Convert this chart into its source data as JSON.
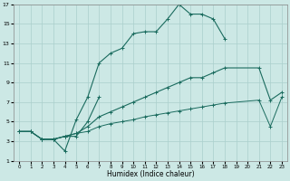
{
  "xlabel": "Humidex (Indice chaleur)",
  "background_color": "#cce8e5",
  "grid_color": "#aacfcc",
  "line_color": "#1a6b5e",
  "line1_x": [
    0,
    1,
    2,
    3,
    4,
    5,
    6,
    7,
    8,
    9,
    10,
    11,
    12,
    13,
    14,
    15,
    16,
    17,
    18
  ],
  "line1_y": [
    4,
    4,
    3.2,
    3.2,
    2.0,
    5.2,
    7.5,
    11.0,
    12.0,
    12.5,
    14.0,
    14.2,
    14.2,
    15.5,
    17.0,
    16.0,
    16.0,
    15.5,
    13.5
  ],
  "line2_x": [
    2,
    3,
    4,
    5,
    6,
    7
  ],
  "line2_y": [
    3.2,
    3.2,
    3.5,
    3.5,
    5.0,
    7.5
  ],
  "line3_x": [
    0,
    1,
    2,
    3,
    4,
    5,
    6,
    7,
    8,
    9,
    10,
    11,
    12,
    13,
    14,
    15,
    16,
    17,
    18,
    21,
    22,
    23
  ],
  "line3_y": [
    4,
    4,
    3.2,
    3.2,
    3.5,
    3.8,
    4.5,
    5.5,
    6.0,
    6.5,
    7.0,
    7.5,
    8.0,
    8.5,
    9.0,
    9.5,
    9.5,
    10.0,
    10.5,
    10.5,
    7.2,
    8.0
  ],
  "line4_x": [
    0,
    1,
    2,
    3,
    4,
    5,
    6,
    7,
    8,
    9,
    10,
    11,
    12,
    13,
    14,
    15,
    16,
    17,
    18,
    21,
    22,
    23
  ],
  "line4_y": [
    4,
    4,
    3.2,
    3.2,
    3.5,
    3.8,
    4.0,
    4.5,
    4.8,
    5.0,
    5.2,
    5.5,
    5.7,
    5.9,
    6.1,
    6.3,
    6.5,
    6.7,
    6.9,
    7.2,
    4.5,
    7.5
  ],
  "xlim": [
    -0.5,
    23.5
  ],
  "ylim": [
    1,
    17
  ],
  "yticks": [
    1,
    3,
    5,
    7,
    9,
    11,
    13,
    15,
    17
  ],
  "xticks": [
    0,
    1,
    2,
    3,
    4,
    5,
    6,
    7,
    8,
    9,
    10,
    11,
    12,
    13,
    14,
    15,
    16,
    17,
    18,
    19,
    20,
    21,
    22,
    23
  ]
}
